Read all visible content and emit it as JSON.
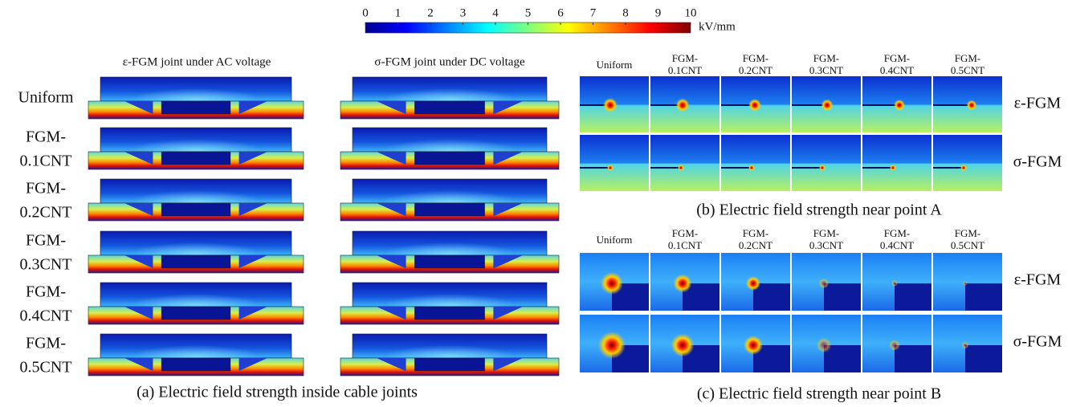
{
  "colorbar": {
    "range": [
      0,
      10
    ],
    "ticks": [
      0,
      1,
      2,
      3,
      4,
      5,
      6,
      7,
      8,
      9,
      10
    ],
    "unit": "kV/mm"
  },
  "panel_a": {
    "column_titles": [
      "ε-FGM joint under AC voltage",
      "σ-FGM joint under DC voltage"
    ],
    "row_labels": [
      [
        "Uniform"
      ],
      [
        "FGM-",
        "0.1CNT"
      ],
      [
        "FGM-",
        "0.2CNT"
      ],
      [
        "FGM-",
        "0.3CNT"
      ],
      [
        "FGM-",
        "0.4CNT"
      ],
      [
        "FGM-",
        "0.5CNT"
      ]
    ],
    "caption": "(a) Electric field strength inside cable joints"
  },
  "panel_b": {
    "column_headers": [
      [
        "Uniform"
      ],
      [
        "FGM-",
        "0.1CNT"
      ],
      [
        "FGM-",
        "0.2CNT"
      ],
      [
        "FGM-",
        "0.3CNT"
      ],
      [
        "FGM-",
        "0.4CNT"
      ],
      [
        "FGM-",
        "0.5CNT"
      ]
    ],
    "row_labels": [
      "ε-FGM",
      "σ-FGM"
    ],
    "caption": "(b) Electric field strength near point A"
  },
  "panel_c": {
    "column_headers": [
      [
        "Uniform"
      ],
      [
        "FGM-",
        "0.1CNT"
      ],
      [
        "FGM-",
        "0.2CNT"
      ],
      [
        "FGM-",
        "0.3CNT"
      ],
      [
        "FGM-",
        "0.4CNT"
      ],
      [
        "FGM-",
        "0.5CNT"
      ]
    ],
    "row_labels": [
      "ε-FGM",
      "σ-FGM"
    ],
    "caption": "(c) Electric field strength near point B"
  }
}
